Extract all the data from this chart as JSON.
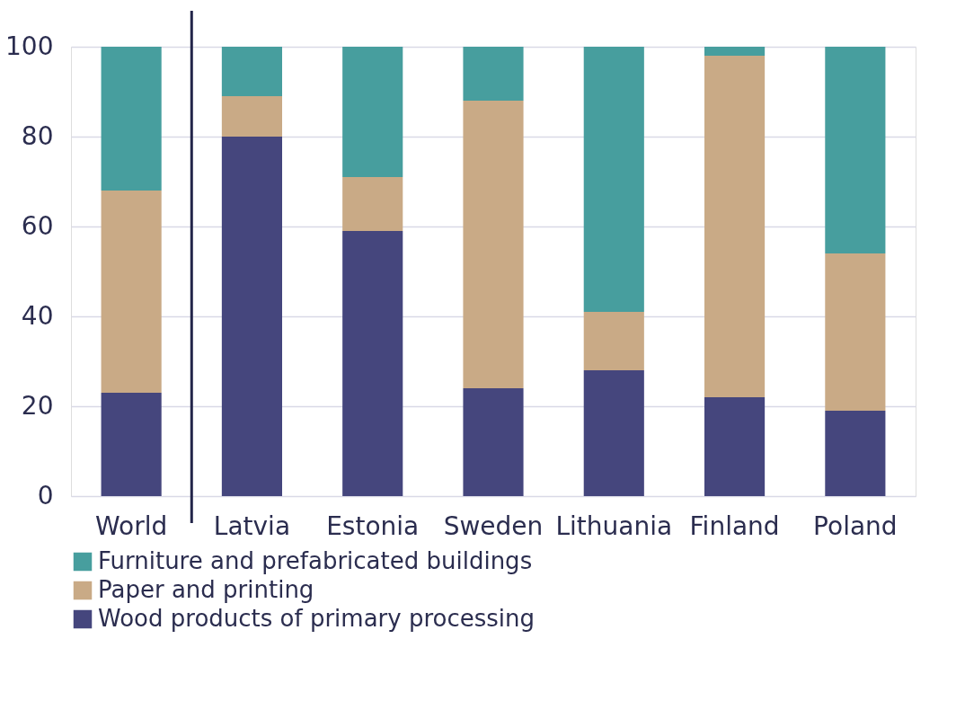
{
  "chart_data": {
    "type": "bar",
    "stacked": true,
    "categories": [
      "World",
      "Latvia",
      "Estonia",
      "Sweden",
      "Lithuania",
      "Finland",
      "Poland"
    ],
    "series": [
      {
        "name": "Wood products of primary processing",
        "color": "#45467d",
        "values": [
          23,
          80,
          59,
          24,
          28,
          22,
          19
        ]
      },
      {
        "name": "Paper and printing",
        "color": "#c9aa86",
        "values": [
          45,
          9,
          12,
          64,
          13,
          76,
          35
        ]
      },
      {
        "name": "Furniture and prefabricated buildings",
        "color": "#479e9e",
        "values": [
          32,
          11,
          29,
          12,
          59,
          2,
          46
        ]
      }
    ],
    "ylim": [
      0,
      100
    ],
    "yticks": [
      0,
      20,
      40,
      60,
      80,
      100
    ],
    "grid": "y",
    "legend": "bottom",
    "ref_lines": [
      {
        "axis": "x",
        "value": "World",
        "color": "#23254a"
      }
    ]
  }
}
